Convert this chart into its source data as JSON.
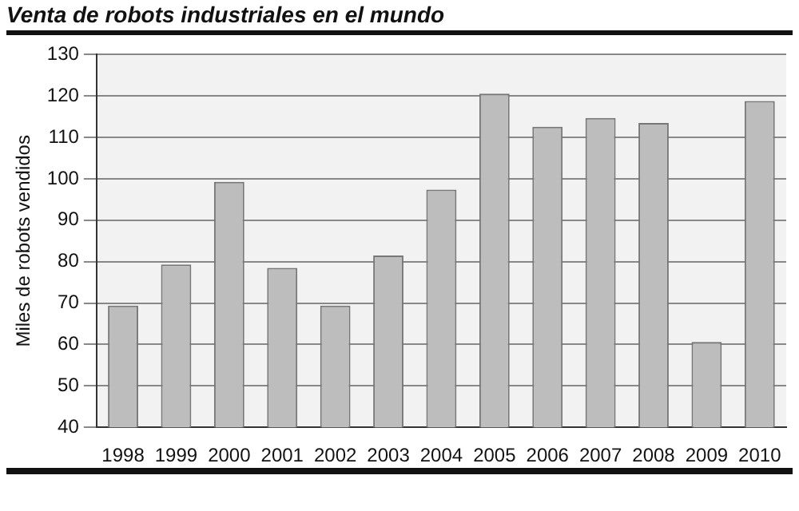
{
  "chart_data": {
    "type": "bar",
    "title": "Venta de robots industriales en el mundo",
    "ylabel": "Miles de robots vendidos",
    "categories": [
      "1998",
      "1999",
      "2000",
      "2001",
      "2002",
      "2003",
      "2004",
      "2005",
      "2006",
      "2007",
      "2008",
      "2009",
      "2010"
    ],
    "values": [
      69.4,
      79.3,
      99.3,
      78.5,
      69.4,
      81.5,
      97.4,
      120.6,
      112.6,
      114.7,
      113.5,
      60.6,
      118.8
    ],
    "color": "#bdbdbd",
    "ylim": [
      40,
      130
    ],
    "yticks": [
      40,
      50,
      60,
      70,
      80,
      90,
      100,
      110,
      120,
      130
    ],
    "grid": "y",
    "legend": false
  }
}
